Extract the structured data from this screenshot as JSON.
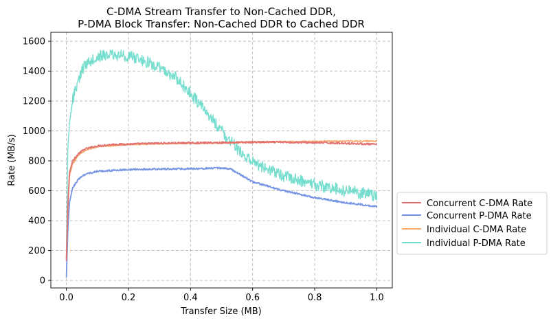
{
  "chart_data": {
    "type": "line",
    "title_lines": [
      "C-DMA Stream Transfer to Non-Cached DDR,",
      "P-DMA Block Transfer: Non-Cached DDR to Cached DDR"
    ],
    "xlabel": "Transfer Size (MB)",
    "ylabel": "Rate (MB/s)",
    "xlim": [
      -0.05,
      1.05
    ],
    "ylim": [
      -50,
      1660
    ],
    "xticks": [
      0.0,
      0.2,
      0.4,
      0.6,
      0.8,
      1.0
    ],
    "xtick_labels": [
      "0.0",
      "0.2",
      "0.4",
      "0.6",
      "0.8",
      "1.0"
    ],
    "yticks": [
      0,
      200,
      400,
      600,
      800,
      1000,
      1200,
      1400,
      1600
    ],
    "ytick_labels": [
      "0",
      "200",
      "400",
      "600",
      "800",
      "1000",
      "1200",
      "1400",
      "1600"
    ],
    "grid": true,
    "legend_placement": "outside right",
    "series": [
      {
        "name": "Concurrent C-DMA Rate",
        "color": "#e06c6c",
        "noise": 6,
        "points": [
          [
            0.0,
            130
          ],
          [
            0.005,
            500
          ],
          [
            0.01,
            720
          ],
          [
            0.02,
            800
          ],
          [
            0.04,
            850
          ],
          [
            0.06,
            880
          ],
          [
            0.1,
            900
          ],
          [
            0.15,
            910
          ],
          [
            0.2,
            912
          ],
          [
            0.3,
            918
          ],
          [
            0.4,
            920
          ],
          [
            0.5,
            922
          ],
          [
            0.6,
            925
          ],
          [
            0.7,
            925
          ],
          [
            0.8,
            922
          ],
          [
            0.9,
            918
          ],
          [
            1.0,
            910
          ]
        ]
      },
      {
        "name": "Concurrent P-DMA Rate",
        "color": "#6f8fe2",
        "noise": 6,
        "points": [
          [
            0.0,
            20
          ],
          [
            0.005,
            350
          ],
          [
            0.01,
            520
          ],
          [
            0.02,
            620
          ],
          [
            0.04,
            680
          ],
          [
            0.06,
            710
          ],
          [
            0.1,
            730
          ],
          [
            0.2,
            742
          ],
          [
            0.3,
            745
          ],
          [
            0.4,
            748
          ],
          [
            0.5,
            752
          ],
          [
            0.53,
            745
          ],
          [
            0.6,
            660
          ],
          [
            0.7,
            600
          ],
          [
            0.8,
            555
          ],
          [
            0.9,
            520
          ],
          [
            1.0,
            495
          ]
        ]
      },
      {
        "name": "Individual C-DMA Rate",
        "color": "#f6a86b",
        "noise": 4,
        "points": [
          [
            0.0,
            150
          ],
          [
            0.005,
            500
          ],
          [
            0.01,
            700
          ],
          [
            0.02,
            780
          ],
          [
            0.04,
            840
          ],
          [
            0.06,
            870
          ],
          [
            0.1,
            895
          ],
          [
            0.2,
            910
          ],
          [
            0.3,
            915
          ],
          [
            0.4,
            918
          ],
          [
            0.5,
            920
          ],
          [
            0.6,
            925
          ],
          [
            0.7,
            928
          ],
          [
            0.8,
            930
          ],
          [
            0.9,
            932
          ],
          [
            1.0,
            932
          ]
        ]
      },
      {
        "name": "Individual P-DMA Rate",
        "color": "#6fdccb",
        "noise": 40,
        "points": [
          [
            0.0,
            200
          ],
          [
            0.005,
            900
          ],
          [
            0.01,
            1050
          ],
          [
            0.02,
            1200
          ],
          [
            0.04,
            1350
          ],
          [
            0.06,
            1450
          ],
          [
            0.1,
            1500
          ],
          [
            0.15,
            1510
          ],
          [
            0.2,
            1500
          ],
          [
            0.25,
            1470
          ],
          [
            0.3,
            1420
          ],
          [
            0.35,
            1360
          ],
          [
            0.4,
            1250
          ],
          [
            0.45,
            1130
          ],
          [
            0.5,
            1000
          ],
          [
            0.55,
            880
          ],
          [
            0.6,
            790
          ],
          [
            0.7,
            700
          ],
          [
            0.8,
            640
          ],
          [
            0.9,
            600
          ],
          [
            1.0,
            570
          ]
        ]
      }
    ]
  }
}
